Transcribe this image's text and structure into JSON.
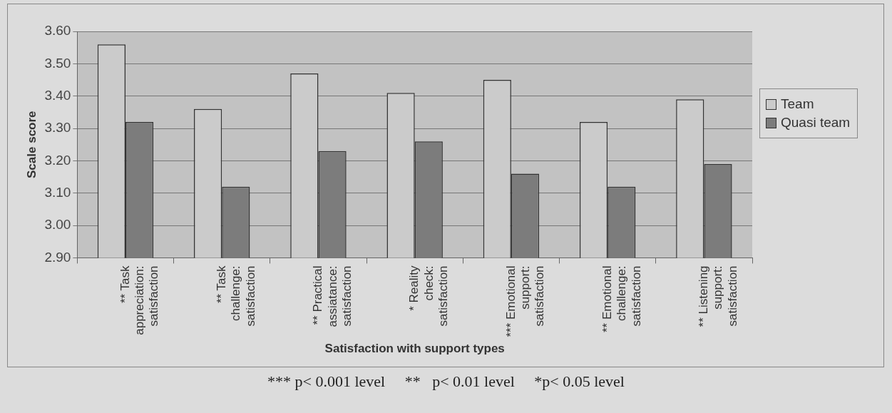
{
  "chart_data": {
    "type": "bar",
    "xlabel": "Satisfaction with support types",
    "ylabel": "Scale score",
    "categories": [
      "** Task appreciation: satisfaction",
      "** Task challenge: satisfaction",
      "** Practical assiatance: satisfaction",
      "* Reality check: satisfaction",
      "*** Emotional support: satisfaction",
      "** Emotional challenge: satisfaction",
      "** Listening support: satisfaction"
    ],
    "series": [
      {
        "name": "Team",
        "color": "#cbcbcb",
        "values": [
          3.56,
          3.36,
          3.47,
          3.41,
          3.45,
          3.32,
          3.39
        ]
      },
      {
        "name": "Quasi team",
        "color": "#7c7c7c",
        "values": [
          3.32,
          3.12,
          3.23,
          3.26,
          3.16,
          3.12,
          3.19
        ]
      }
    ],
    "ylim": [
      2.9,
      3.6
    ],
    "yticks": [
      {
        "value": 2.9,
        "label": "2.90"
      },
      {
        "value": 3.0,
        "label": "3.00"
      },
      {
        "value": 3.1,
        "label": "3.10"
      },
      {
        "value": 3.2,
        "label": "3.20"
      },
      {
        "value": 3.3,
        "label": "3.30"
      },
      {
        "value": 3.4,
        "label": "3.40"
      },
      {
        "value": 3.5,
        "label": "3.50"
      },
      {
        "value": 3.6,
        "label": "3.60"
      }
    ],
    "grid": "y",
    "legend": "right",
    "annotations": [
      "*** p< 0.001 level     **   p< 0.01 level     *p< 0.05 level"
    ]
  }
}
